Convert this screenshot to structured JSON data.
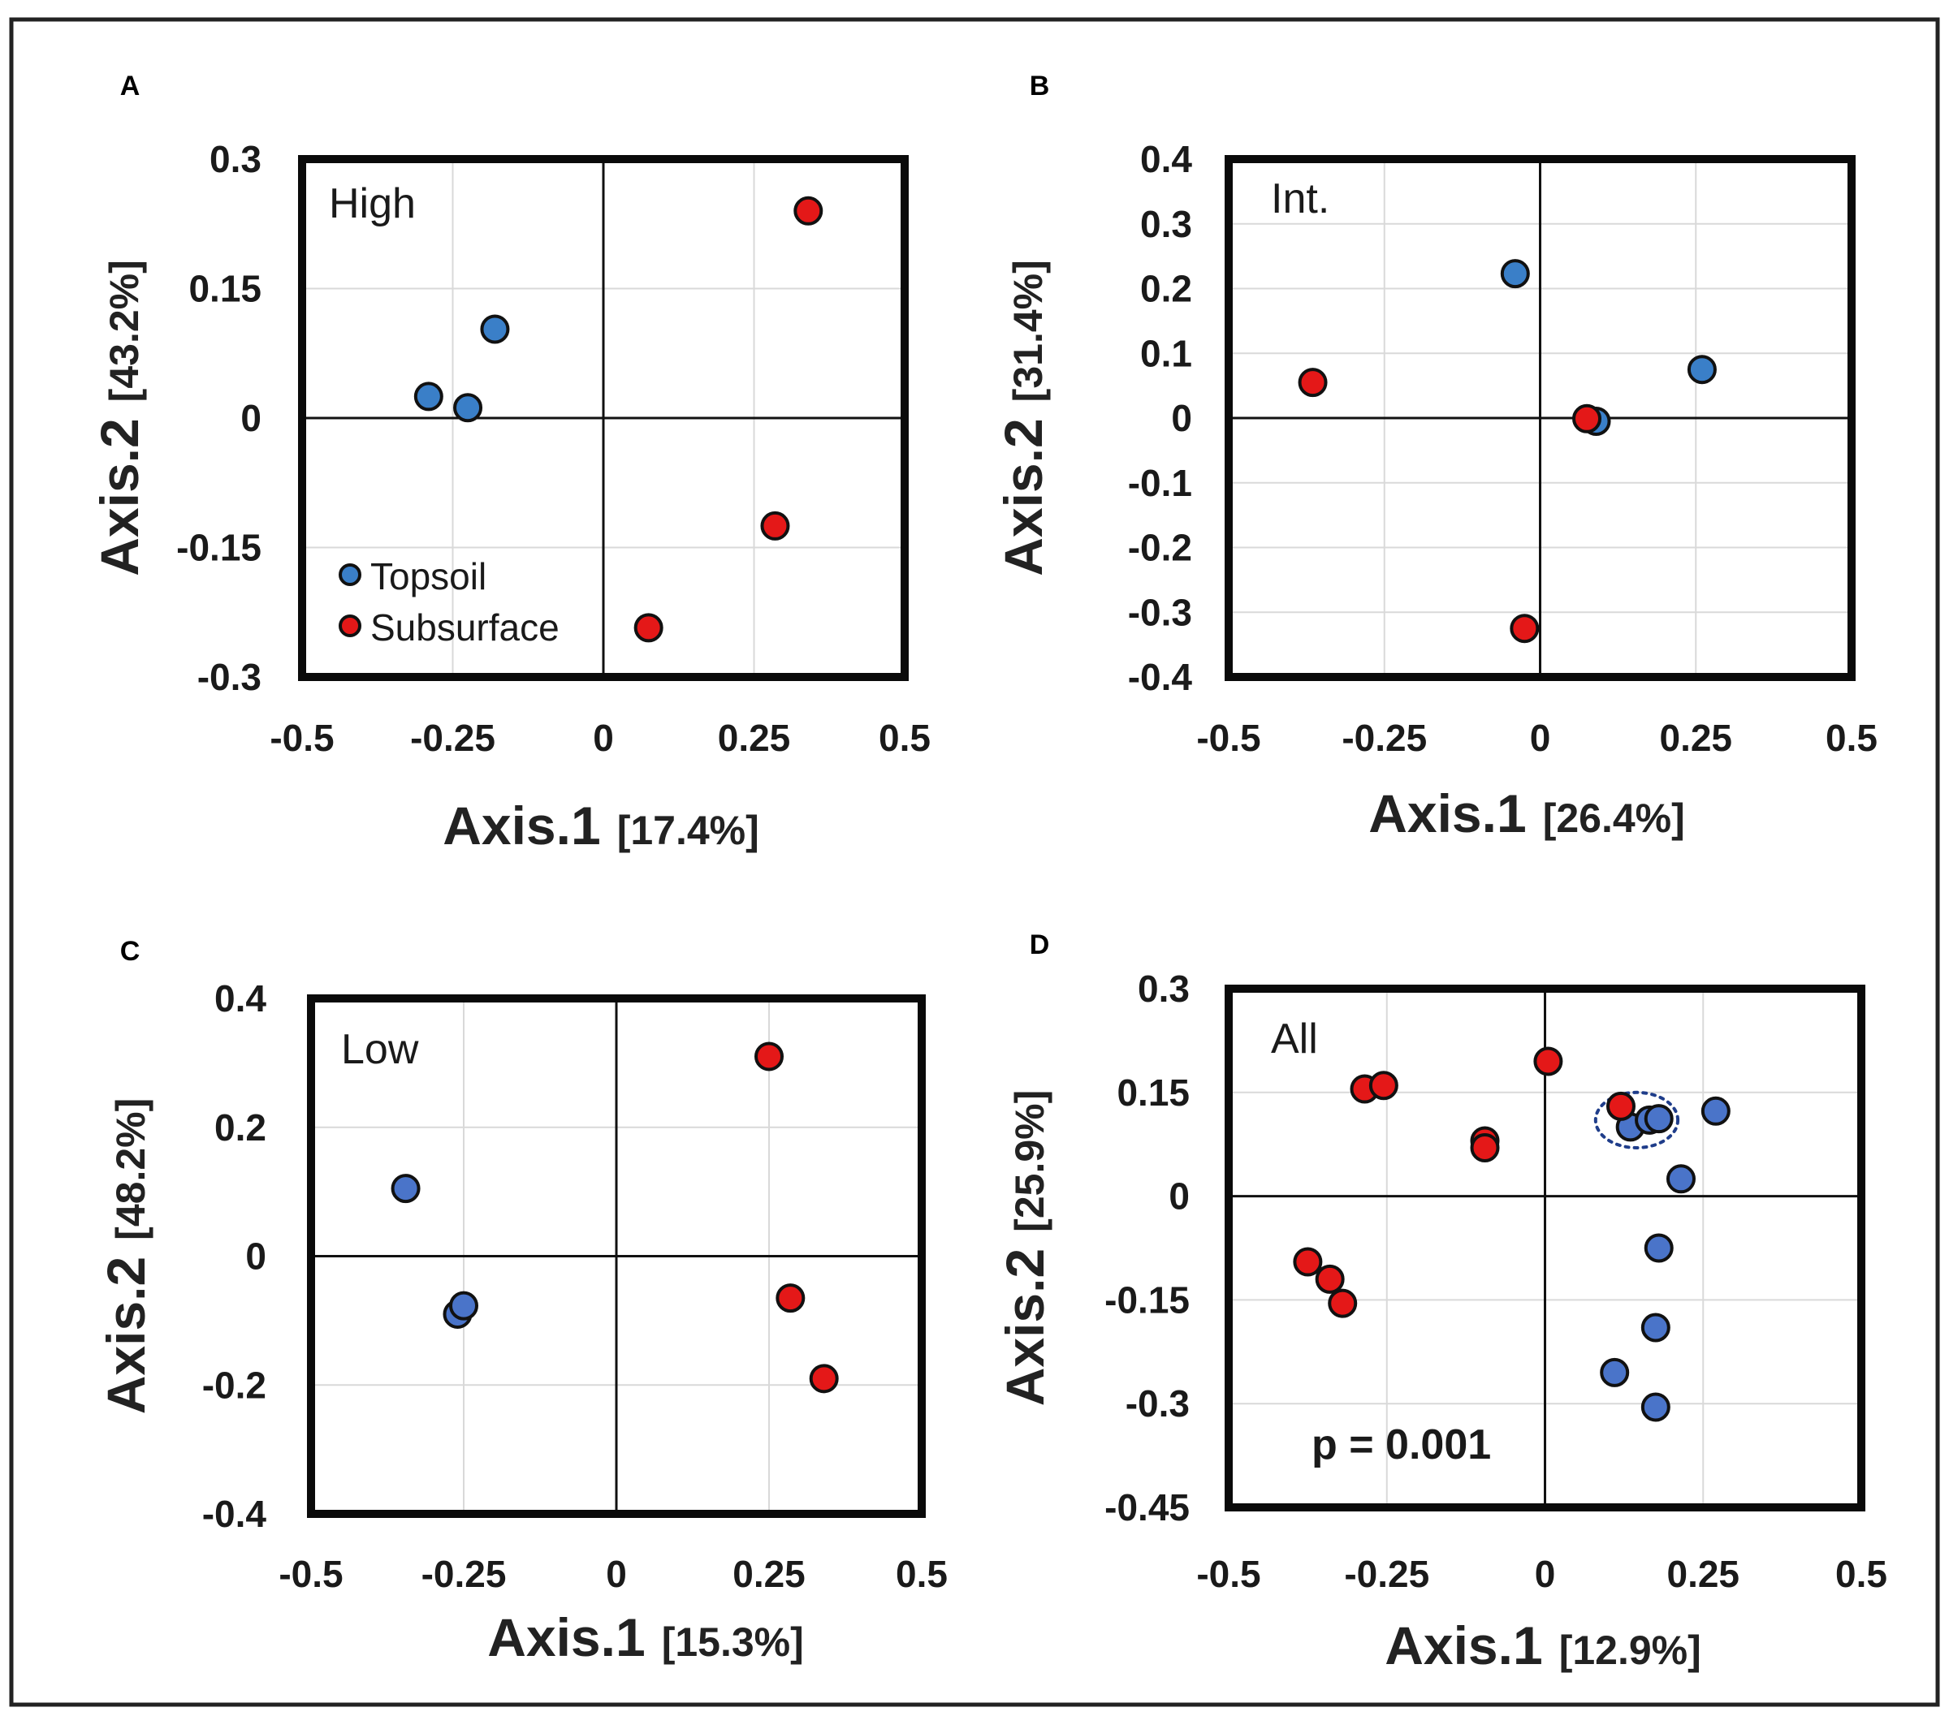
{
  "chart_data": [
    {
      "panel": "A",
      "type": "scatter",
      "title": "High",
      "xlabel": "Axis.1",
      "xlabel_pct": "[17.4%]",
      "ylabel": "Axis.2",
      "ylabel_pct": "[43.2%]",
      "xlim": [
        -0.5,
        0.5
      ],
      "ylim": [
        -0.3,
        0.3
      ],
      "xticks": [
        "-0.5",
        "-0.25",
        "0",
        "0.25",
        "0.5"
      ],
      "yticks": [
        "0.3",
        "0.15",
        "0",
        "-0.15",
        "-0.3"
      ],
      "legend": [
        {
          "label": "Topsoil",
          "color": "#3a7fc8"
        },
        {
          "label": "Subsurface",
          "color": "#e41818"
        }
      ],
      "series": [
        {
          "name": "Topsoil",
          "color": "#3a7fc8",
          "points": [
            [
              -0.29,
              0.025
            ],
            [
              -0.225,
              0.012
            ],
            [
              -0.18,
              0.103
            ]
          ]
        },
        {
          "name": "Subsurface",
          "color": "#e41818",
          "points": [
            [
              0.34,
              0.24
            ],
            [
              0.285,
              -0.125
            ],
            [
              0.075,
              -0.243
            ]
          ]
        }
      ]
    },
    {
      "panel": "B",
      "type": "scatter",
      "title": "Int.",
      "xlabel": "Axis.1",
      "xlabel_pct": "[26.4%]",
      "ylabel": "Axis.2",
      "ylabel_pct": "[31.4%]",
      "xlim": [
        -0.5,
        0.5
      ],
      "ylim": [
        -0.4,
        0.4
      ],
      "xticks": [
        "-0.5",
        "-0.25",
        "0",
        "0.25",
        "0.5"
      ],
      "yticks": [
        "0.4",
        "0.3",
        "0.2",
        "0.1",
        "0",
        "-0.1",
        "-0.2",
        "-0.3",
        "-0.4"
      ],
      "series": [
        {
          "name": "Topsoil",
          "color": "#3a7fc8",
          "points": [
            [
              -0.04,
              0.223
            ],
            [
              0.26,
              0.075
            ],
            [
              0.09,
              -0.005
            ]
          ]
        },
        {
          "name": "Subsurface",
          "color": "#e41818",
          "points": [
            [
              -0.365,
              0.055
            ],
            [
              0.075,
              -0.001
            ],
            [
              -0.025,
              -0.325
            ]
          ]
        }
      ]
    },
    {
      "panel": "C",
      "type": "scatter",
      "title": "Low",
      "xlabel": "Axis.1",
      "xlabel_pct": "[15.3%]",
      "ylabel": "Axis.2",
      "ylabel_pct": "[48.2%]",
      "xlim": [
        -0.5,
        0.5
      ],
      "ylim": [
        -0.4,
        0.4
      ],
      "xticks": [
        "-0.5",
        "-0.25",
        "0",
        "0.25",
        "0.5"
      ],
      "yticks": [
        "0.4",
        "0.2",
        "0",
        "-0.2",
        "-0.4"
      ],
      "series": [
        {
          "name": "Topsoil",
          "color": "#4a74c9",
          "points": [
            [
              -0.345,
              0.105
            ],
            [
              -0.26,
              -0.09
            ],
            [
              -0.25,
              -0.077
            ]
          ]
        },
        {
          "name": "Subsurface",
          "color": "#e41818",
          "points": [
            [
              0.25,
              0.31
            ],
            [
              0.285,
              -0.065
            ],
            [
              0.34,
              -0.19
            ]
          ]
        }
      ]
    },
    {
      "panel": "D",
      "type": "scatter",
      "title": "All",
      "xlabel": "Axis.1",
      "xlabel_pct": "[12.9%]",
      "ylabel": "Axis.2",
      "ylabel_pct": "[25.9%]",
      "annotation": "p = 0.001",
      "xlim": [
        -0.5,
        0.5
      ],
      "ylim": [
        -0.45,
        0.3
      ],
      "xticks": [
        "-0.5",
        "-0.25",
        "0",
        "0.25",
        "0.5"
      ],
      "yticks": [
        "0.3",
        "0.15",
        "0",
        "-0.15",
        "-0.3",
        "-0.45"
      ],
      "highlight_ellipse": {
        "center": [
          0.145,
          0.11
        ],
        "rx": 0.065,
        "ry": 0.04
      },
      "series": [
        {
          "name": "Topsoil",
          "color": "#4a74c9",
          "points": [
            [
              0.135,
              0.1
            ],
            [
              0.165,
              0.11
            ],
            [
              0.18,
              0.112
            ],
            [
              0.27,
              0.123
            ],
            [
              0.215,
              0.025
            ],
            [
              0.18,
              -0.075
            ],
            [
              0.175,
              -0.19
            ],
            [
              0.11,
              -0.255
            ],
            [
              0.175,
              -0.305
            ]
          ]
        },
        {
          "name": "Subsurface",
          "color": "#e41818",
          "points": [
            [
              0.005,
              0.195
            ],
            [
              0.12,
              0.13
            ],
            [
              -0.285,
              0.155
            ],
            [
              -0.255,
              0.16
            ],
            [
              -0.095,
              0.08
            ],
            [
              -0.095,
              0.07
            ],
            [
              -0.375,
              -0.095
            ],
            [
              -0.34,
              -0.12
            ],
            [
              -0.32,
              -0.155
            ]
          ]
        }
      ]
    }
  ]
}
